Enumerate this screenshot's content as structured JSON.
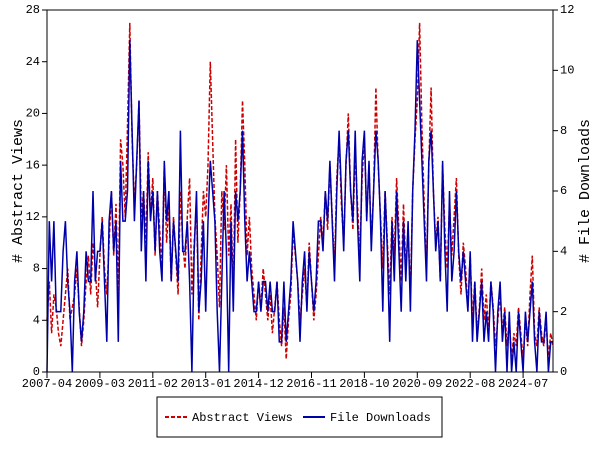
{
  "chart_data": {
    "type": "line",
    "ylabel": "# Abstract Views",
    "y2label": "# File Downloads",
    "x": [
      "2007-04",
      "2007-05",
      "2007-06",
      "2007-07",
      "2007-08",
      "2007-09",
      "2007-10",
      "2007-11",
      "2007-12",
      "2008-01",
      "2008-02",
      "2008-03",
      "2008-04",
      "2008-05",
      "2008-06",
      "2008-07",
      "2008-08",
      "2008-09",
      "2008-10",
      "2008-11",
      "2008-12",
      "2009-01",
      "2009-02",
      "2009-03",
      "2009-04",
      "2009-05",
      "2009-06",
      "2009-07",
      "2009-08",
      "2009-09",
      "2009-10",
      "2009-11",
      "2009-12",
      "2010-01",
      "2010-02",
      "2010-03",
      "2010-04",
      "2010-05",
      "2010-06",
      "2010-07",
      "2010-08",
      "2010-09",
      "2010-10",
      "2010-11",
      "2010-12",
      "2011-01",
      "2011-02",
      "2011-03",
      "2011-04",
      "2011-05",
      "2011-06",
      "2011-07",
      "2011-08",
      "2011-09",
      "2011-10",
      "2011-11",
      "2011-12",
      "2012-01",
      "2012-02",
      "2012-03",
      "2012-04",
      "2012-05",
      "2012-06",
      "2012-07",
      "2012-08",
      "2012-09",
      "2012-10",
      "2012-11",
      "2012-12",
      "2013-01",
      "2013-02",
      "2013-03",
      "2013-04",
      "2013-05",
      "2013-06",
      "2013-07",
      "2013-08",
      "2013-09",
      "2013-10",
      "2013-11",
      "2013-12",
      "2014-01",
      "2014-02",
      "2014-03",
      "2014-04",
      "2014-05",
      "2014-06",
      "2014-07",
      "2014-08",
      "2014-09",
      "2014-10",
      "2014-11",
      "2014-12",
      "2015-01",
      "2015-02",
      "2015-03",
      "2015-04",
      "2015-05",
      "2015-06",
      "2015-07",
      "2015-08",
      "2015-09",
      "2015-10",
      "2015-11",
      "2015-12",
      "2016-01",
      "2016-02",
      "2016-03",
      "2016-04",
      "2016-05",
      "2016-06",
      "2016-07",
      "2016-08",
      "2016-09",
      "2016-10",
      "2016-11",
      "2016-12",
      "2017-01",
      "2017-02",
      "2017-03",
      "2017-04",
      "2017-05",
      "2017-06",
      "2017-07",
      "2017-08",
      "2017-09",
      "2017-10",
      "2017-11",
      "2017-12",
      "2018-01",
      "2018-02",
      "2018-03",
      "2018-04",
      "2018-05",
      "2018-06",
      "2018-07",
      "2018-08",
      "2018-09",
      "2018-10",
      "2018-11",
      "2018-12",
      "2019-01",
      "2019-02",
      "2019-03",
      "2019-04",
      "2019-05",
      "2019-06",
      "2019-07",
      "2019-08",
      "2019-09",
      "2019-10",
      "2019-11",
      "2019-12",
      "2020-01",
      "2020-02",
      "2020-03",
      "2020-04",
      "2020-05",
      "2020-06",
      "2020-07",
      "2020-08",
      "2020-09",
      "2020-10",
      "2020-11",
      "2020-12",
      "2021-01",
      "2021-02",
      "2021-03",
      "2021-04",
      "2021-05",
      "2021-06",
      "2021-07",
      "2021-08",
      "2021-09",
      "2021-10",
      "2021-11",
      "2021-12",
      "2022-01",
      "2022-02",
      "2022-03",
      "2022-04",
      "2022-05",
      "2022-06",
      "2022-07",
      "2022-08",
      "2022-09",
      "2022-10",
      "2022-11",
      "2022-12",
      "2023-01",
      "2023-02",
      "2023-03",
      "2023-04",
      "2023-05",
      "2023-06",
      "2023-07",
      "2023-08",
      "2023-09",
      "2023-10",
      "2023-11",
      "2023-12",
      "2024-01",
      "2024-02",
      "2024-03",
      "2024-04",
      "2024-05",
      "2024-06",
      "2024-07",
      "2024-08",
      "2024-09",
      "2024-10",
      "2024-11",
      "2024-12",
      "2025-01",
      "2025-02",
      "2025-03",
      "2025-04",
      "2025-05",
      "2025-06",
      "2025-07",
      "2025-08"
    ],
    "series": [
      {
        "name": "Abstract Views",
        "color": "#cc0000",
        "dash": true,
        "values": [
          4,
          7,
          3,
          6,
          5,
          3,
          2,
          4,
          6,
          8,
          4,
          5,
          6,
          8,
          5,
          2,
          4,
          7,
          9,
          6,
          10,
          8,
          5,
          9,
          12,
          8,
          6,
          10,
          14,
          9,
          13,
          6,
          18,
          16,
          12,
          19,
          27,
          18,
          13,
          16,
          21,
          12,
          14,
          10,
          17,
          12,
          15,
          9,
          14,
          11,
          8,
          16,
          10,
          13,
          7,
          12,
          9,
          6,
          14,
          10,
          8,
          12,
          15,
          6,
          10,
          13,
          4,
          9,
          14,
          12,
          16,
          24,
          18,
          12,
          9,
          5,
          14,
          11,
          16,
          9,
          13,
          6,
          18,
          10,
          14,
          21,
          16,
          9,
          12,
          8,
          6,
          4,
          7,
          5,
          8,
          6,
          4,
          6,
          3,
          5,
          7,
          4,
          2,
          5,
          1,
          4,
          6,
          11,
          9,
          7,
          4,
          6,
          8,
          5,
          10,
          7,
          4,
          6,
          9,
          12,
          10,
          14,
          11,
          16,
          12,
          8,
          15,
          18,
          13,
          10,
          16,
          20,
          14,
          11,
          17,
          13,
          9,
          15,
          18,
          12,
          16,
          10,
          14,
          22,
          16,
          12,
          8,
          14,
          10,
          6,
          12,
          9,
          15,
          11,
          7,
          13,
          8,
          11,
          6,
          14,
          18,
          21,
          27,
          19,
          13,
          8,
          16,
          22,
          14,
          10,
          12,
          7,
          16,
          11,
          8,
          13,
          9,
          12,
          15,
          9,
          6,
          10,
          8,
          5,
          9,
          4,
          7,
          3,
          5,
          8,
          4,
          6,
          3,
          7,
          5,
          2,
          4,
          6,
          3,
          5,
          2,
          4,
          1,
          3,
          2,
          5,
          3,
          1,
          4,
          2,
          6,
          9,
          3,
          2,
          5,
          3,
          2,
          4,
          1,
          3,
          2
        ]
      },
      {
        "name": "File Downloads",
        "color": "#0000aa",
        "dash": false,
        "axis": "y2",
        "values": [
          0,
          5,
          3,
          5,
          2,
          2,
          2,
          4,
          5,
          3,
          2,
          0,
          3,
          4,
          2,
          1,
          2,
          4,
          3,
          3,
          6,
          3,
          4,
          4,
          5,
          3,
          1,
          5,
          6,
          4,
          5,
          1,
          7,
          5,
          5,
          6,
          11,
          8,
          5,
          7,
          9,
          4,
          6,
          3,
          7,
          5,
          6,
          4,
          6,
          4,
          3,
          7,
          5,
          6,
          3,
          5,
          4,
          3,
          8,
          4,
          4,
          5,
          3,
          0,
          4,
          6,
          2,
          3,
          5,
          2,
          5,
          7,
          6,
          5,
          2,
          0,
          3,
          6,
          4,
          0,
          5,
          2,
          6,
          5,
          6,
          8,
          5,
          3,
          4,
          3,
          2,
          2,
          3,
          2,
          3,
          3,
          2,
          3,
          2,
          2,
          3,
          1,
          1,
          3,
          1,
          2,
          3,
          5,
          4,
          3,
          1,
          3,
          4,
          2,
          4,
          3,
          2,
          3,
          5,
          5,
          4,
          6,
          5,
          7,
          5,
          3,
          6,
          8,
          6,
          4,
          7,
          8,
          6,
          5,
          8,
          5,
          3,
          7,
          8,
          5,
          7,
          4,
          6,
          8,
          7,
          5,
          2,
          6,
          4,
          1,
          5,
          3,
          6,
          4,
          2,
          5,
          3,
          5,
          2,
          6,
          8,
          11,
          9,
          7,
          5,
          3,
          7,
          8,
          6,
          4,
          5,
          3,
          7,
          4,
          2,
          6,
          3,
          4,
          6,
          4,
          3,
          4,
          3,
          2,
          4,
          1,
          3,
          1,
          2,
          3,
          1,
          2,
          1,
          3,
          2,
          0,
          2,
          3,
          1,
          2,
          0,
          2,
          0,
          1,
          0,
          2,
          1,
          0,
          2,
          1,
          2,
          3,
          1,
          0,
          2,
          1,
          1,
          2,
          0,
          1,
          1
        ]
      }
    ],
    "xlim": [
      "2007-04",
      "2025-08"
    ],
    "xticks": [
      "2007-04",
      "2009-03",
      "2011-02",
      "2013-01",
      "2014-12",
      "2016-11",
      "2018-10",
      "2020-09",
      "2022-08",
      "2024-07"
    ],
    "ylim": [
      0,
      28
    ],
    "yticks": [
      0,
      4,
      8,
      12,
      16,
      20,
      24,
      28
    ],
    "y2lim": [
      0,
      12
    ],
    "y2ticks": [
      0,
      2,
      4,
      6,
      8,
      10,
      12
    ],
    "legend": "bottom"
  }
}
